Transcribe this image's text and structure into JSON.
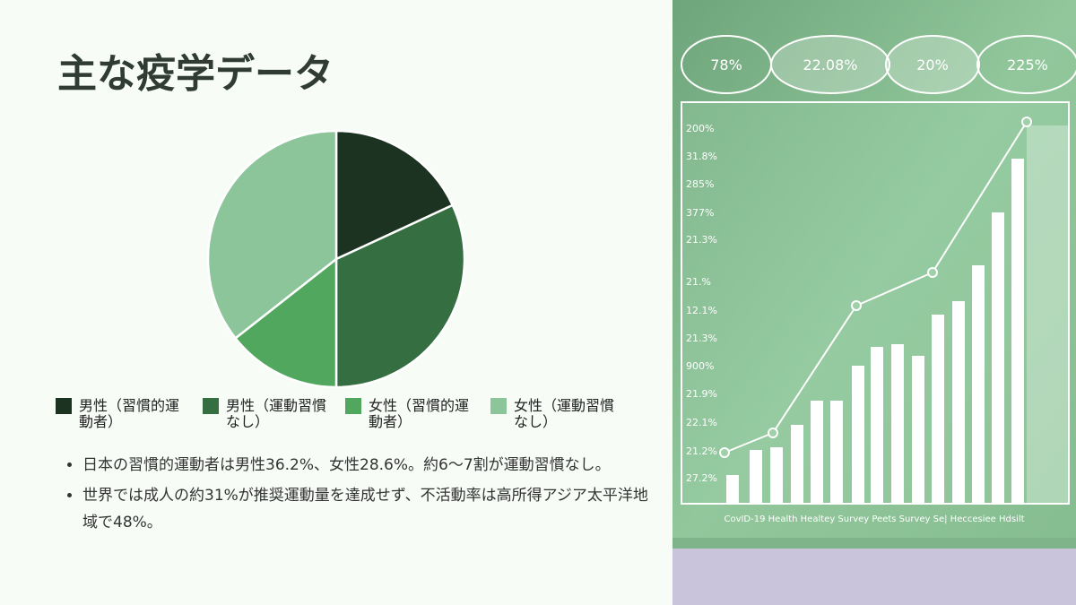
{
  "chart_data": {
    "type": "pie",
    "title": "主な疫学データ",
    "categories": [
      "男性（習慣的運動者）",
      "男性（運動習慣なし）",
      "女性（習慣的運動者）",
      "女性（運動習慣なし）"
    ],
    "values": [
      18.1,
      31.9,
      14.4,
      35.6
    ],
    "colors": [
      "#1b3320",
      "#346e41",
      "#52a75e",
      "#8cc59a"
    ],
    "legend": "bottom"
  },
  "bullets": [
    "日本の習慣的運動者は男性36.2%、女性28.6%。約6～7割が運動習慣なし。",
    "世界では成人の約31%が推奨運動量を達成せず、不活動率は高所得アジア太平洋地域で48%。"
  ],
  "image": {
    "bubbles": [
      "78%",
      "22.08%",
      "20%",
      "225%"
    ],
    "axis_labels": [
      "200%",
      "31.8%",
      "285%",
      "377%",
      "21.3%",
      "21.%",
      "12.1%",
      "21.3%",
      "900%",
      "21.9%",
      "22.1%",
      "21.2%",
      "27.2%"
    ],
    "caption": "CovID-19 Health Healtey Survey Peets Survey Se| Heccesiee Hdsilt"
  }
}
